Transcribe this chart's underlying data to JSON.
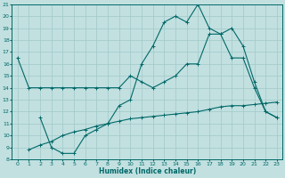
{
  "xlabel": "Humidex (Indice chaleur)",
  "bg_color": "#c2e0e0",
  "line_color": "#006868",
  "grid_color": "#a0c8c8",
  "xlim": [
    -0.5,
    23.5
  ],
  "ylim": [
    8,
    21
  ],
  "xticks": [
    0,
    1,
    2,
    3,
    4,
    5,
    6,
    7,
    8,
    9,
    10,
    11,
    12,
    13,
    14,
    15,
    16,
    17,
    18,
    19,
    20,
    21,
    22,
    23
  ],
  "yticks": [
    8,
    9,
    10,
    11,
    12,
    13,
    14,
    15,
    16,
    17,
    18,
    19,
    20,
    21
  ],
  "line1_x": [
    0,
    1,
    2,
    3,
    4,
    5,
    6,
    7,
    8,
    9,
    10,
    11,
    12,
    13,
    14,
    15,
    16,
    17,
    18,
    19,
    20,
    21,
    22,
    23
  ],
  "line1_y": [
    16.5,
    14.0,
    14.0,
    14.0,
    14.0,
    14.0,
    14.0,
    14.0,
    14.0,
    14.0,
    15.0,
    14.5,
    14.0,
    14.5,
    15.0,
    16.0,
    16.0,
    18.5,
    18.5,
    16.5,
    16.5,
    14.0,
    12.0,
    11.5
  ],
  "line2_x": [
    2,
    3,
    4,
    5,
    6,
    7,
    8,
    9,
    10,
    11,
    12,
    13,
    14,
    15,
    16,
    17,
    18,
    19,
    20,
    21,
    22,
    23
  ],
  "line2_y": [
    11.5,
    9.0,
    8.5,
    8.5,
    10.0,
    10.5,
    11.0,
    12.5,
    13.0,
    16.0,
    17.5,
    19.5,
    20.0,
    19.5,
    21.0,
    19.0,
    18.5,
    19.0,
    17.5,
    14.5,
    12.0,
    11.5
  ],
  "line3_x": [
    1,
    2,
    3,
    4,
    5,
    6,
    7,
    8,
    9,
    10,
    11,
    12,
    13,
    14,
    15,
    16,
    17,
    18,
    19,
    20,
    21,
    22,
    23
  ],
  "line3_y": [
    8.8,
    9.2,
    9.5,
    10.0,
    10.3,
    10.5,
    10.8,
    11.0,
    11.2,
    11.4,
    11.5,
    11.6,
    11.7,
    11.8,
    11.9,
    12.0,
    12.2,
    12.4,
    12.5,
    12.5,
    12.6,
    12.7,
    12.8
  ]
}
